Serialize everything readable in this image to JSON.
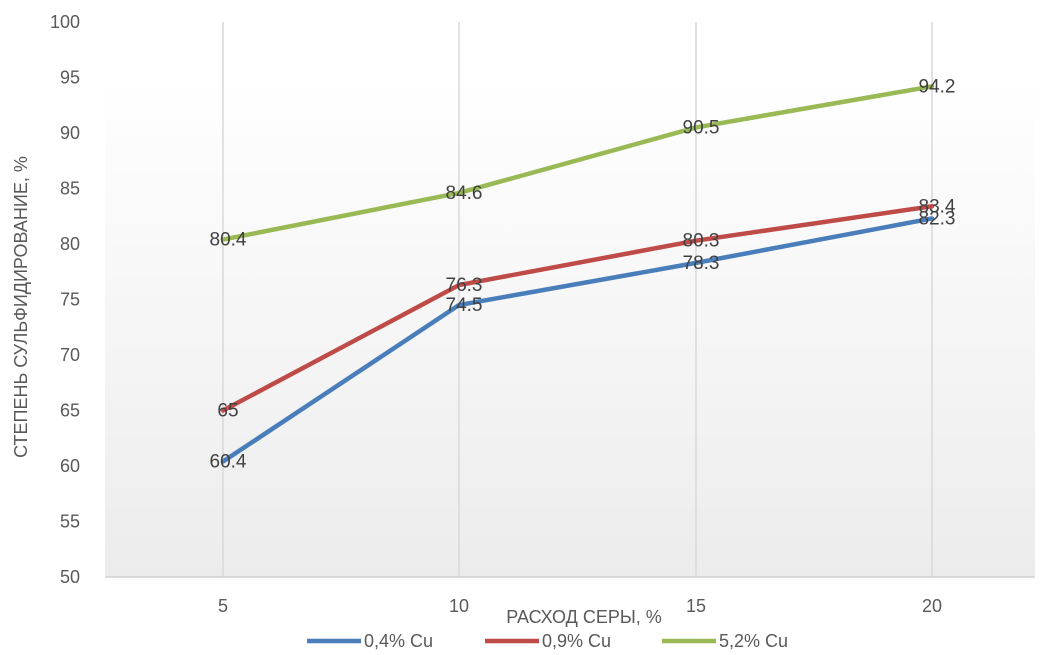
{
  "chart_data": {
    "type": "line",
    "title": "",
    "xlabel": "РАСХОД СЕРЫ, %",
    "ylabel": "СТЕПЕНЬ СУЛЬФИДИРОВАНИЕ, %",
    "x": [
      5,
      10,
      15,
      20
    ],
    "x_tick_labels": [
      "5",
      "10",
      "15",
      "20"
    ],
    "ylim": [
      50,
      100
    ],
    "y_ticks": [
      50,
      55,
      60,
      65,
      70,
      75,
      80,
      85,
      90,
      95,
      100
    ],
    "y_tick_labels": [
      "50",
      "55",
      "60",
      "65",
      "70",
      "75",
      "80",
      "85",
      "90",
      "95",
      "100"
    ],
    "grid": "vertical",
    "legend_position": "bottom",
    "series": [
      {
        "name": "0,4% Cu",
        "color": "#4a7ebb",
        "values": [
          60.4,
          74.5,
          78.3,
          82.3
        ],
        "labels": [
          "60.4",
          "74.5",
          "78.3",
          "82.3"
        ]
      },
      {
        "name": "0,9% Cu",
        "color": "#be4b48",
        "values": [
          65,
          76.3,
          80.3,
          83.4
        ],
        "labels": [
          "65",
          "76.3",
          "80.3",
          "83.4"
        ]
      },
      {
        "name": "5,2% Cu",
        "color": "#98b954",
        "values": [
          80.4,
          84.6,
          90.5,
          94.2
        ],
        "labels": [
          "80.4",
          "84.6",
          "90.5",
          "94.2"
        ]
      }
    ]
  }
}
